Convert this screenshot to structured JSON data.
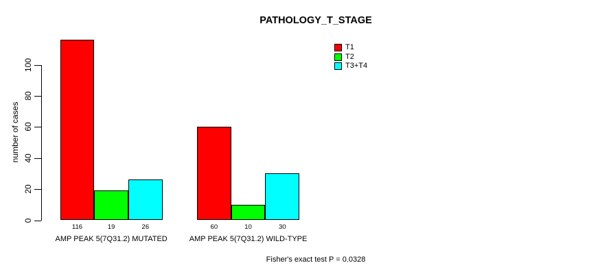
{
  "chart_data": {
    "type": "bar",
    "title": "PATHOLOGY_T_STAGE",
    "ylabel": "number of cases",
    "ylim": [
      0,
      100
    ],
    "yticks": [
      0,
      20,
      40,
      60,
      80,
      100
    ],
    "grid": false,
    "legend_position": "top-right",
    "categories": [
      "AMP PEAK 5(7Q31.2) MUTATED",
      "AMP PEAK 5(7Q31.2) WILD-TYPE"
    ],
    "series": [
      {
        "name": "T1",
        "color": "#ff0000",
        "values": [
          116,
          60
        ]
      },
      {
        "name": "T2",
        "color": "#00ff00",
        "values": [
          19,
          10
        ]
      },
      {
        "name": "T3+T4",
        "color": "#00ffff",
        "values": [
          26,
          30
        ]
      }
    ],
    "bar_value_labels": [
      [
        "116",
        "19",
        "26"
      ],
      [
        "60",
        "10",
        "30"
      ]
    ],
    "annotation": "Fisher's exact test P = 0.0328"
  }
}
